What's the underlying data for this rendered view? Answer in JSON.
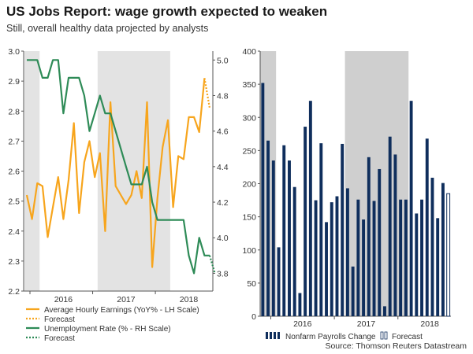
{
  "header": {
    "title": "US Jobs Report: wage growth expected to weaken",
    "subtitle": "Still, overall healthy data projected by analysts"
  },
  "source": "Source: Thomson Reuters Datastream",
  "colors": {
    "earnings": "#f7a51d",
    "unemployment": "#2e8b57",
    "payrolls": "#0f2e5c",
    "shade": "#e3e3e3",
    "shade_dark": "#cfcfcf"
  },
  "chart_data": [
    {
      "type": "line",
      "x_tick_labels": [
        "2016",
        "2017",
        "2018"
      ],
      "y_left": {
        "min": 2.2,
        "max": 3.0,
        "ticks": [
          "2.2",
          "2.3",
          "2.4",
          "2.5",
          "2.6",
          "2.7",
          "2.8",
          "2.9",
          "3.0"
        ]
      },
      "y_right": {
        "min": 3.7,
        "max": 5.05,
        "ticks": [
          "3.8",
          "4.0",
          "4.2",
          "4.4",
          "4.6",
          "4.8",
          "5.0"
        ]
      },
      "shaded_periods": [
        [
          0,
          2
        ],
        [
          14,
          27
        ],
        [
          39,
          41
        ]
      ],
      "series": [
        {
          "name": "Average Hourly Earnings (YoY% - LH Scale)",
          "axis": "left",
          "values": [
            2.52,
            2.44,
            2.56,
            2.55,
            2.38,
            2.48,
            2.58,
            2.44,
            2.57,
            2.76,
            2.46,
            2.63,
            2.7,
            2.58,
            2.66,
            2.4,
            2.83,
            2.55,
            2.52,
            2.49,
            2.52,
            2.6,
            2.51,
            2.83,
            2.28,
            2.51,
            2.68,
            2.77,
            2.48,
            2.65,
            2.64,
            2.78,
            2.78,
            2.73,
            2.91
          ]
        },
        {
          "name": "Forecast",
          "axis": "left",
          "style": "dotted",
          "x": [
            34,
            35
          ],
          "values": [
            2.91,
            2.81
          ]
        },
        {
          "name": "Unemployment Rate (% - RH Scale)",
          "axis": "right",
          "values": [
            5.0,
            5.0,
            5.0,
            4.9,
            4.9,
            5.0,
            5.0,
            4.7,
            4.9,
            4.9,
            4.9,
            4.8,
            4.6,
            4.7,
            4.8,
            4.7,
            4.7,
            4.6,
            4.5,
            4.4,
            4.3,
            4.3,
            4.3,
            4.4,
            4.2,
            4.1,
            4.1,
            4.1,
            4.1,
            4.1,
            4.1,
            3.9,
            3.8,
            4.0,
            3.9,
            3.9
          ],
          "x_start": 0
        },
        {
          "name": "Forecast",
          "axis": "right",
          "style": "dotted",
          "x": [
            35,
            36
          ],
          "values": [
            3.9,
            3.8
          ]
        }
      ]
    },
    {
      "type": "bar",
      "x_tick_labels": [
        "2016",
        "2017",
        "2018"
      ],
      "ylim": [
        0,
        400
      ],
      "y_ticks": [
        "0",
        "50",
        "100",
        "150",
        "200",
        "250",
        "300",
        "350",
        "400"
      ],
      "shaded_periods": [
        [
          0,
          3
        ],
        [
          16,
          28
        ]
      ],
      "series": [
        {
          "name": "Nonfarm Payrolls Change",
          "values": [
            352,
            265,
            235,
            104,
            258,
            235,
            195,
            35,
            286,
            325,
            175,
            261,
            142,
            172,
            181,
            260,
            193,
            75,
            176,
            146,
            240,
            174,
            222,
            15,
            271,
            244,
            176,
            176,
            325,
            155,
            176,
            268,
            209,
            148,
            201
          ]
        },
        {
          "name": "Forecast",
          "values": [
            185
          ],
          "x_start": 35
        }
      ]
    }
  ]
}
